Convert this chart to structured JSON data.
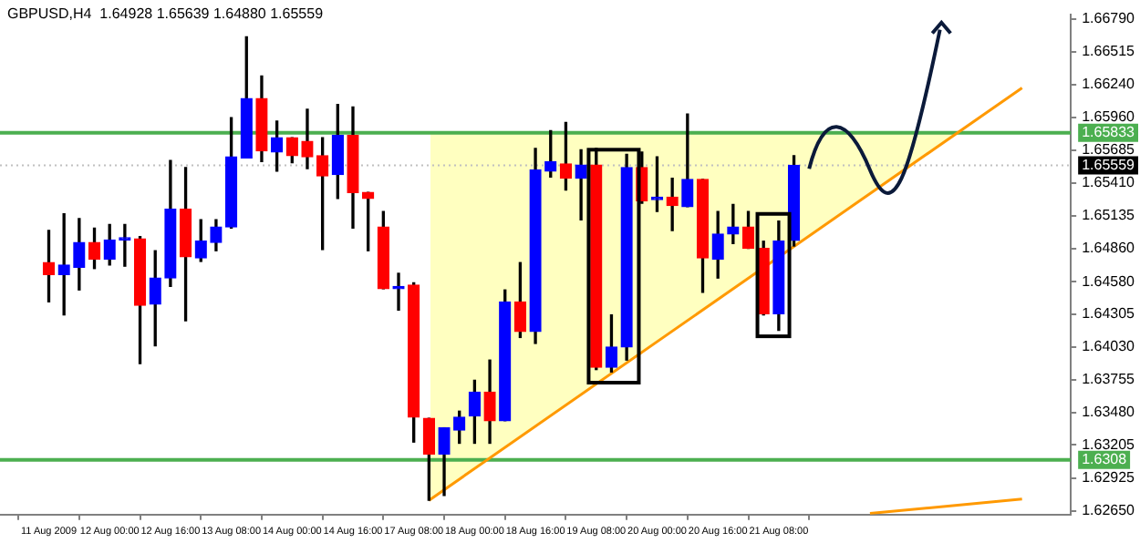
{
  "chart_data": {
    "type": "candlestick",
    "title": "GBPUSD,H4  1.64928 1.65639 1.64880 1.65559",
    "categories": [
      "11 Aug 2009",
      null,
      null,
      null,
      "12 Aug 00:00",
      null,
      null,
      null,
      "12 Aug 16:00",
      null,
      null,
      null,
      "13 Aug 08:00",
      null,
      null,
      null,
      "14 Aug 00:00",
      null,
      null,
      null,
      "14 Aug 16:00",
      null,
      null,
      null,
      "17 Aug 08:00",
      null,
      null,
      null,
      "18 Aug 00:00",
      null,
      null,
      null,
      "18 Aug 16:00",
      null,
      null,
      null,
      "19 Aug 08:00",
      null,
      null,
      null,
      "20 Aug 00:00",
      null,
      null,
      null,
      "20 Aug 16:00",
      null,
      null,
      null,
      "21 Aug 08:00",
      null,
      null,
      null,
      null,
      null,
      null,
      null,
      null,
      null,
      null,
      null,
      null,
      null,
      null,
      null,
      null
    ],
    "ohlc": [
      [
        1.6474,
        1.6501,
        1.6441,
        1.6464
      ],
      [
        1.6464,
        1.6515,
        1.643,
        1.6472
      ],
      [
        1.647,
        1.6511,
        1.6451,
        1.6491
      ],
      [
        1.6491,
        1.6503,
        1.6469,
        1.6477
      ],
      [
        1.6477,
        1.6506,
        1.6472,
        1.6493
      ],
      [
        1.6493,
        1.6506,
        1.6471,
        1.6495
      ],
      [
        1.6494,
        1.6496,
        1.6389,
        1.6438
      ],
      [
        1.6439,
        1.6484,
        1.6404,
        1.6461
      ],
      [
        1.6461,
        1.656,
        1.6454,
        1.6519
      ],
      [
        1.6519,
        1.6554,
        1.6425,
        1.6479
      ],
      [
        1.6478,
        1.651,
        1.6475,
        1.6492
      ],
      [
        1.6491,
        1.651,
        1.6484,
        1.6504
      ],
      [
        1.6504,
        1.6596,
        1.6503,
        1.6563
      ],
      [
        1.6562,
        1.6664,
        1.6562,
        1.6612
      ],
      [
        1.6612,
        1.6631,
        1.6559,
        1.6568
      ],
      [
        1.6567,
        1.6593,
        1.6551,
        1.6579
      ],
      [
        1.6579,
        1.6579,
        1.6558,
        1.6564
      ],
      [
        1.6576,
        1.6603,
        1.6553,
        1.6563
      ],
      [
        1.6564,
        1.6579,
        1.6485,
        1.6547
      ],
      [
        1.6548,
        1.6607,
        1.6528,
        1.6581
      ],
      [
        1.6581,
        1.6605,
        1.6503,
        1.6533
      ],
      [
        1.6533,
        1.6533,
        1.6484,
        1.6528
      ],
      [
        1.6504,
        1.6517,
        1.6452,
        1.6452
      ],
      [
        1.6452,
        1.6465,
        1.6434,
        1.6454
      ],
      [
        1.6455,
        1.6457,
        1.6323,
        1.6344
      ],
      [
        1.6343,
        1.6343,
        1.6274,
        1.6313
      ],
      [
        1.6313,
        1.6335,
        1.6278,
        1.6335
      ],
      [
        1.6333,
        1.6349,
        1.6322,
        1.6344
      ],
      [
        1.6345,
        1.6375,
        1.6322,
        1.6365
      ],
      [
        1.6365,
        1.6392,
        1.6322,
        1.6341
      ],
      [
        1.6341,
        1.6451,
        1.6341,
        1.6441
      ],
      [
        1.6441,
        1.6474,
        1.6411,
        1.6416
      ],
      [
        1.6416,
        1.657,
        1.6406,
        1.6552
      ],
      [
        1.6551,
        1.6585,
        1.6546,
        1.6559
      ],
      [
        1.6557,
        1.6592,
        1.6535,
        1.6545
      ],
      [
        1.6545,
        1.6569,
        1.651,
        1.6556
      ],
      [
        1.6556,
        1.657,
        1.6384,
        1.6386
      ],
      [
        1.6386,
        1.643,
        1.6382,
        1.6403
      ],
      [
        1.6403,
        1.6565,
        1.6392,
        1.6554
      ],
      [
        1.6554,
        1.6567,
        1.6524,
        1.6526
      ],
      [
        1.6527,
        1.6563,
        1.6517,
        1.6529
      ],
      [
        1.6529,
        1.6545,
        1.6501,
        1.6522
      ],
      [
        1.6521,
        1.6599,
        1.6521,
        1.6544
      ],
      [
        1.6544,
        1.6544,
        1.6449,
        1.6478
      ],
      [
        1.6477,
        1.6517,
        1.6461,
        1.6498
      ],
      [
        1.6498,
        1.6523,
        1.649,
        1.6504
      ],
      [
        1.6504,
        1.6517,
        1.6486,
        1.6486
      ],
      [
        1.6486,
        1.6492,
        1.643,
        1.6431
      ],
      [
        1.6431,
        1.6509,
        1.6417,
        1.6492
      ],
      [
        1.64928,
        1.65639,
        1.6488,
        1.65559
      ],
      null,
      null,
      null,
      null,
      null,
      null,
      null,
      null,
      null,
      null,
      null,
      null,
      null,
      null,
      null
    ],
    "colors": [
      "#ff0000",
      "#0000ff",
      "#0000ff",
      "#ff0000",
      "#0000ff",
      "#0000ff",
      "#ff0000",
      "#0000ff",
      "#0000ff",
      "#ff0000",
      "#0000ff",
      "#0000ff",
      "#0000ff",
      "#0000ff",
      "#ff0000",
      "#0000ff",
      "#ff0000",
      "#ff0000",
      "#ff0000",
      "#0000ff",
      "#ff0000",
      "#ff0000",
      "#ff0000",
      "#0000ff",
      "#ff0000",
      "#ff0000",
      "#0000ff",
      "#0000ff",
      "#0000ff",
      "#ff0000",
      "#0000ff",
      "#ff0000",
      "#0000ff",
      "#0000ff",
      "#ff0000",
      "#0000ff",
      "#ff0000",
      "#0000ff",
      "#0000ff",
      "#ff0000",
      "#0000ff",
      "#ff0000",
      "#0000ff",
      "#ff0000",
      "#0000ff",
      "#0000ff",
      "#ff0000",
      "#ff0000",
      "#0000ff",
      "#0000ff",
      null,
      null,
      null,
      null,
      null,
      null,
      null,
      null,
      null,
      null,
      null,
      null,
      null,
      null,
      null
    ],
    "series": [
      {
        "type": "line",
        "color": "#ff9900",
        "values": [
          null,
          null,
          null,
          null,
          null,
          null,
          null,
          null,
          null,
          null,
          null,
          null,
          null,
          null,
          null,
          null,
          null,
          null,
          null,
          null,
          null,
          null,
          null,
          null,
          null,
          1.6274,
          null,
          null,
          null,
          null,
          null,
          null,
          null,
          null,
          null,
          null,
          null,
          null,
          null,
          null,
          null,
          null,
          null,
          null,
          null,
          null,
          null,
          null,
          null,
          null,
          null,
          null,
          null,
          null,
          null,
          null,
          null,
          null,
          null,
          null,
          null,
          null,
          null,
          null,
          1.6621
        ]
      },
      {
        "type": "line",
        "color": "#ff9900",
        "values": [
          null,
          null,
          null,
          null,
          null,
          null,
          null,
          null,
          null,
          null,
          null,
          null,
          null,
          null,
          null,
          null,
          null,
          null,
          null,
          null,
          null,
          null,
          null,
          null,
          null,
          null,
          null,
          null,
          null,
          null,
          null,
          null,
          null,
          null,
          null,
          null,
          null,
          null,
          null,
          null,
          null,
          null,
          null,
          null,
          null,
          null,
          null,
          null,
          null,
          null,
          null,
          null,
          null,
          null,
          1.6263,
          null,
          null,
          null,
          null,
          null,
          null,
          null,
          null,
          null,
          1.6275
        ]
      }
    ],
    "ylim": [
      1.6262,
      1.6683
    ],
    "yticks": [
      {
        "value": 1.6679,
        "label": "1.66790"
      },
      {
        "value": 1.66515,
        "label": "1.66515"
      },
      {
        "value": 1.6624,
        "label": "1.66240"
      },
      {
        "value": 1.6596,
        "label": "1.65960"
      },
      {
        "value": 1.65685,
        "label": "1.65685"
      },
      {
        "value": 1.6541,
        "label": "1.65410"
      },
      {
        "value": 1.65135,
        "label": "1.65135"
      },
      {
        "value": 1.6486,
        "label": "1.64860"
      },
      {
        "value": 1.6458,
        "label": "1.64580"
      },
      {
        "value": 1.64305,
        "label": "1.64305"
      },
      {
        "value": 1.6403,
        "label": "1.64030"
      },
      {
        "value": 1.63755,
        "label": "1.63755"
      },
      {
        "value": 1.6348,
        "label": "1.63480"
      },
      {
        "value": 1.63205,
        "label": "1.63205"
      },
      {
        "value": 1.62925,
        "label": "1.62925"
      },
      {
        "value": 1.6265,
        "label": "1.62650"
      }
    ],
    "ref_lines": [
      {
        "axis": "y",
        "value": 1.65833,
        "label": "1.65833",
        "color": "#4caf50",
        "line_style": "solid"
      },
      {
        "axis": "y",
        "value": 1.65559,
        "label": "1.65559",
        "color": "#c0c0c0",
        "line_style": "dotted"
      },
      {
        "axis": "y",
        "value": 1.6308,
        "label": "1.6308",
        "color": "#4caf50",
        "line_style": "solid"
      }
    ],
    "legend": false,
    "marker": "none"
  }
}
